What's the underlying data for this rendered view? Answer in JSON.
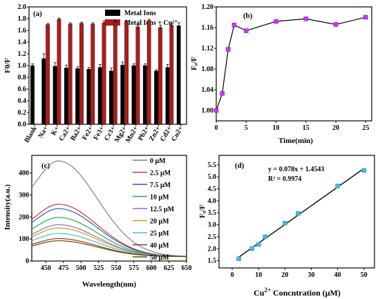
{
  "chart_data": [
    {
      "type": "bar",
      "panel_label": "(a)",
      "ylabel": "F0/F",
      "ylim": [
        0,
        2.0
      ],
      "yticks": [
        0,
        0.2,
        0.4,
        0.6,
        0.8,
        1.0,
        1.2,
        1.4,
        1.6,
        1.8,
        2.0
      ],
      "categories": [
        "Blank",
        "Na+",
        "K+",
        "Ca2+",
        "Ba2+",
        "Fe2+",
        "Fe3+",
        "Cr3+",
        "Mg2+",
        "Mn2+",
        "Pb2+",
        "Zn2+",
        "Cd2+",
        "Cu2+"
      ],
      "legend_position": "top-right",
      "series": [
        {
          "name": "Metal Ions",
          "color": "#000000",
          "values": [
            1.0,
            1.12,
            0.99,
            0.96,
            0.95,
            0.94,
            0.97,
            0.91,
            1.01,
            1.0,
            1.0,
            0.91,
            0.97,
            1.68
          ],
          "errors": [
            0.03,
            0.08,
            0.06,
            0.05,
            0.03,
            0.03,
            0.05,
            0.05,
            0.05,
            0.03,
            0.03,
            0.02,
            0.05,
            0.05
          ]
        },
        {
          "name": "Metal Ions + Cu²⁺",
          "color": "#b31b1b",
          "values": [
            null,
            1.7,
            1.79,
            1.71,
            1.72,
            1.71,
            1.73,
            1.75,
            1.75,
            1.66,
            1.77,
            1.65,
            1.69,
            null
          ],
          "errors": [
            null,
            0.02,
            0.02,
            0.02,
            0.02,
            0.02,
            0.03,
            0.02,
            0.02,
            0.03,
            0.02,
            0.04,
            0.03,
            null
          ]
        }
      ]
    },
    {
      "type": "line",
      "panel_label": "(b)",
      "xlabel": "Time(min)",
      "ylabel": "F₀/F",
      "xlim": [
        0,
        26
      ],
      "ylim": [
        0.98,
        1.2
      ],
      "xticks": [
        0,
        5,
        10,
        15,
        20,
        25
      ],
      "yticks": [
        1.0,
        1.04,
        1.08,
        1.12,
        1.16,
        1.2
      ],
      "x": [
        0,
        1,
        2,
        3,
        5,
        10,
        15,
        20,
        25
      ],
      "y": [
        1.0,
        1.033,
        1.118,
        1.165,
        1.154,
        1.172,
        1.177,
        1.166,
        1.18
      ],
      "marker_color": "#cc33ff"
    },
    {
      "type": "line",
      "panel_label": "(c)",
      "xlabel": "Wavelength(nm)",
      "ylabel": "Intensity(a.u.)",
      "xlim": [
        430,
        650
      ],
      "ylim": [
        0,
        480
      ],
      "xticks": [
        450,
        475,
        500,
        525,
        550,
        575,
        600,
        625,
        650
      ],
      "yticks": [
        0,
        100,
        200,
        300,
        400
      ],
      "legend_position": "top-right",
      "series": [
        {
          "name": "0 μM",
          "color": "#808080",
          "peak": 455
        },
        {
          "name": "2.5 μM",
          "color": "#cc3333",
          "peak": 258
        },
        {
          "name": "7.5 μM",
          "color": "#3355cc",
          "peak": 238
        },
        {
          "name": "10 μM",
          "color": "#22aa55",
          "peak": 198
        },
        {
          "name": "12.5 μM",
          "color": "#9966cc",
          "peak": 165
        },
        {
          "name": "20 μM",
          "color": "#c8a000",
          "peak": 150
        },
        {
          "name": "25 μM",
          "color": "#44bbdd",
          "peak": 125
        },
        {
          "name": "40 μM",
          "color": "#8b3a1a",
          "peak": 102
        },
        {
          "name": "50 μM",
          "color": "#5c4a00",
          "peak": 92
        }
      ]
    },
    {
      "type": "scatter",
      "panel_label": "(d)",
      "xlabel": "Cu",
      "xlabel_sup": "2+",
      "xlabel_rest": " Concntration (μM)",
      "ylabel": "F₀/F",
      "xlim": [
        -5,
        54
      ],
      "ylim": [
        1.2,
        5.9
      ],
      "xticks": [
        0,
        10,
        20,
        30,
        40,
        50
      ],
      "yticks": [
        1.5,
        2.0,
        2.5,
        3.0,
        3.5,
        4.0,
        4.5,
        5.0,
        5.5
      ],
      "x": [
        2.5,
        7.5,
        10,
        12.5,
        20,
        25,
        40,
        50
      ],
      "y": [
        1.58,
        2.01,
        2.18,
        2.5,
        3.07,
        3.47,
        4.62,
        5.27
      ],
      "equation": "y = 0.078x + 1.4543",
      "r2": "R² = 0.9974",
      "marker_color": "#44bbdd"
    }
  ]
}
